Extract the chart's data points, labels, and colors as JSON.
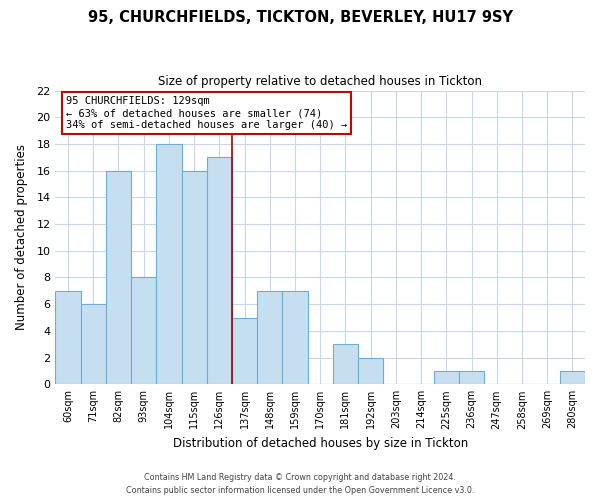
{
  "title_line1": "95, CHURCHFIELDS, TICKTON, BEVERLEY, HU17 9SY",
  "title_line2": "Size of property relative to detached houses in Tickton",
  "xlabel": "Distribution of detached houses by size in Tickton",
  "ylabel": "Number of detached properties",
  "bin_labels": [
    "60sqm",
    "71sqm",
    "82sqm",
    "93sqm",
    "104sqm",
    "115sqm",
    "126sqm",
    "137sqm",
    "148sqm",
    "159sqm",
    "170sqm",
    "181sqm",
    "192sqm",
    "203sqm",
    "214sqm",
    "225sqm",
    "236sqm",
    "247sqm",
    "258sqm",
    "269sqm",
    "280sqm"
  ],
  "bar_heights": [
    7,
    6,
    16,
    8,
    18,
    16,
    17,
    5,
    7,
    7,
    0,
    3,
    2,
    0,
    0,
    1,
    1,
    0,
    0,
    0,
    1
  ],
  "bar_color": "#c5dff0",
  "bar_edge_color": "#6aadd5",
  "property_line_x": 6.5,
  "property_line_color": "#aa0000",
  "annotation_title": "95 CHURCHFIELDS: 129sqm",
  "annotation_line1": "← 63% of detached houses are smaller (74)",
  "annotation_line2": "34% of semi-detached houses are larger (40) →",
  "annotation_box_color": "#ffffff",
  "annotation_box_edge_color": "#cc0000",
  "ylim": [
    0,
    22
  ],
  "yticks": [
    0,
    2,
    4,
    6,
    8,
    10,
    12,
    14,
    16,
    18,
    20,
    22
  ],
  "footer_line1": "Contains HM Land Registry data © Crown copyright and database right 2024.",
  "footer_line2": "Contains public sector information licensed under the Open Government Licence v3.0.",
  "background_color": "#ffffff",
  "grid_color": "#c8d8e8"
}
